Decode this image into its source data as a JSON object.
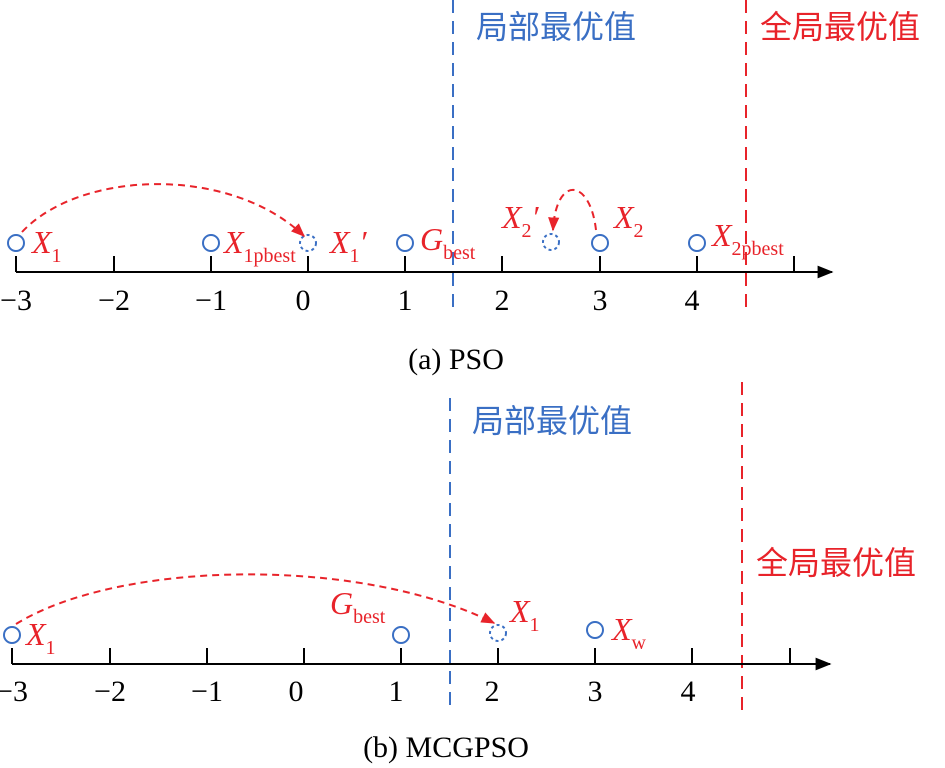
{
  "colors": {
    "axis": "#000000",
    "blue": "#3a6fc4",
    "red": "#e8232a"
  },
  "panel_a": {
    "caption": "(a) PSO",
    "ticks": [
      "−3",
      "−2",
      "−1",
      "0",
      "1",
      "2",
      "3",
      "4"
    ],
    "local_opt_label": "局部最优值",
    "global_opt_label": "全局最优值",
    "labels": {
      "x1": {
        "main": "X",
        "sub": "1"
      },
      "x1pbest": {
        "main": "X",
        "sub": "1pbest"
      },
      "x1prime": {
        "main": "X",
        "sub": "1",
        "prime": "′"
      },
      "gbest": {
        "main": "G",
        "sub": "best"
      },
      "x2prime": {
        "main": "X",
        "sub": "2",
        "prime": "′"
      },
      "x2": {
        "main": "X",
        "sub": "2"
      },
      "x2pbest": {
        "main": "X",
        "sub": "2pbest"
      }
    }
  },
  "panel_b": {
    "caption": "(b) MCGPSO",
    "ticks": [
      "−3",
      "−2",
      "−1",
      "0",
      "1",
      "2",
      "3",
      "4"
    ],
    "local_opt_label": "局部最优值",
    "global_opt_label": "全局最优值",
    "labels": {
      "x1": {
        "main": "X",
        "sub": "1"
      },
      "gbest": {
        "main": "G",
        "sub": "best"
      },
      "x1new": {
        "main": "X",
        "sub": "1"
      },
      "xw": {
        "main": "X",
        "sub": "w"
      }
    }
  }
}
